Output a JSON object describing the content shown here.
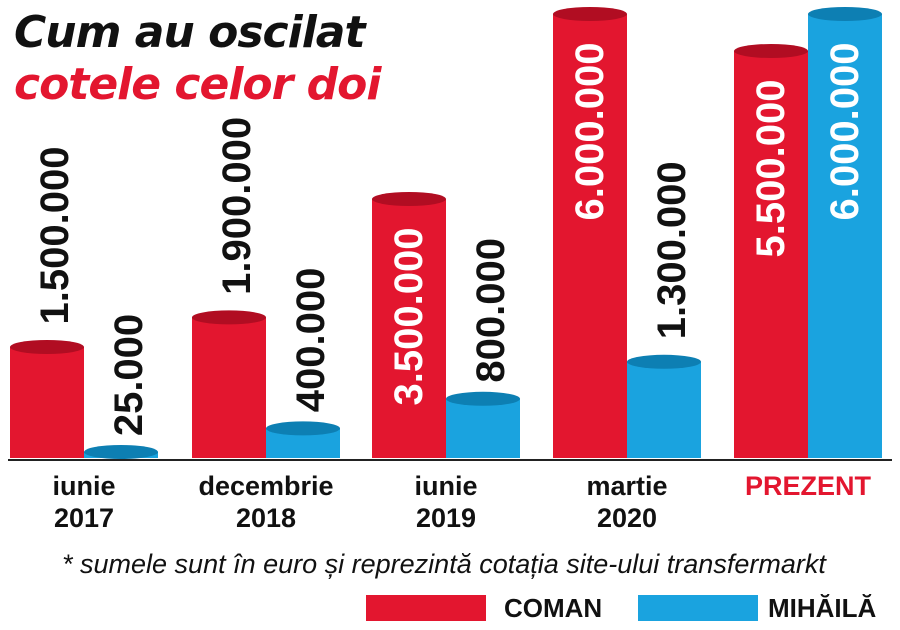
{
  "title": {
    "line1": "Cum au oscilat",
    "line2": "cotele celor doi"
  },
  "note": "* sumele sunt în euro și reprezintă cotația site-ului transfermarkt",
  "legend": [
    {
      "name": "COMAN",
      "color": "#e3162f"
    },
    {
      "name": "MIHĂILĂ",
      "color": "#1aa3df"
    }
  ],
  "chart_data": {
    "type": "bar",
    "categories": [
      "iunie\n2017",
      "decembrie\n2018",
      "iunie\n2019",
      "martie\n2020",
      "PREZENT"
    ],
    "highlight_category": "PREZENT",
    "highlight_color": "#e3162f",
    "series": [
      {
        "name": "COMAN",
        "color": "#e3162f",
        "values": [
          1500000,
          1900000,
          3500000,
          6000000,
          5500000
        ],
        "labels": [
          "1.500.000",
          "1.900.000",
          "3.500.000",
          "6.000.000",
          "5.500.000"
        ]
      },
      {
        "name": "MIHĂILĂ",
        "color": "#1aa3df",
        "values": [
          25000,
          400000,
          800000,
          1300000,
          6000000
        ],
        "labels": [
          "25.000",
          "400.000",
          "800.000",
          "1.300.000",
          "6.000.000"
        ]
      }
    ],
    "ylim": [
      0,
      6000000
    ],
    "grid": false,
    "legend_position": "bottom-right"
  }
}
